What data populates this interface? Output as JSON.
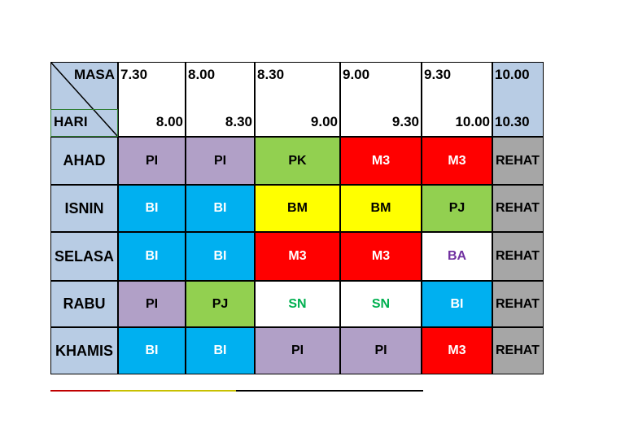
{
  "header": {
    "corner_top": "MASA",
    "corner_bottom": "HARI",
    "slots": [
      {
        "start": "7.30",
        "end": "8.00"
      },
      {
        "start": "8.00",
        "end": "8.30"
      },
      {
        "start": "8.30",
        "end": "9.00"
      },
      {
        "start": "9.00",
        "end": "9.30"
      },
      {
        "start": "9.30",
        "end": "10.00"
      },
      {
        "start": "10.00",
        "end": "10.30"
      }
    ]
  },
  "rows": [
    {
      "day": "AHAD",
      "cells": [
        {
          "text": "PI",
          "bg": "#b1a0c7",
          "fg": "#000000"
        },
        {
          "text": "PI",
          "bg": "#b1a0c7",
          "fg": "#000000"
        },
        {
          "text": "PK",
          "bg": "#92d050",
          "fg": "#000000"
        },
        {
          "text": "M3",
          "bg": "#ff0000",
          "fg": "#ffffff"
        },
        {
          "text": "M3",
          "bg": "#ff0000",
          "fg": "#ffffff"
        },
        {
          "text": "REHAT",
          "bg": "#a6a6a6",
          "fg": "#000000"
        }
      ]
    },
    {
      "day": "ISNIN",
      "cells": [
        {
          "text": "BI",
          "bg": "#00b0f0",
          "fg": "#ffffff"
        },
        {
          "text": "BI",
          "bg": "#00b0f0",
          "fg": "#ffffff"
        },
        {
          "text": "BM",
          "bg": "#ffff00",
          "fg": "#000000"
        },
        {
          "text": "BM",
          "bg": "#ffff00",
          "fg": "#000000"
        },
        {
          "text": "PJ",
          "bg": "#92d050",
          "fg": "#000000"
        },
        {
          "text": "REHAT",
          "bg": "#a6a6a6",
          "fg": "#000000"
        }
      ]
    },
    {
      "day": "SELASA",
      "cells": [
        {
          "text": "BI",
          "bg": "#00b0f0",
          "fg": "#ffffff"
        },
        {
          "text": "BI",
          "bg": "#00b0f0",
          "fg": "#ffffff"
        },
        {
          "text": "M3",
          "bg": "#ff0000",
          "fg": "#ffffff"
        },
        {
          "text": "M3",
          "bg": "#ff0000",
          "fg": "#ffffff"
        },
        {
          "text": "BA",
          "bg": "#ffffff",
          "fg": "#7030a0"
        },
        {
          "text": "REHAT",
          "bg": "#a6a6a6",
          "fg": "#000000"
        }
      ]
    },
    {
      "day": "RABU",
      "cells": [
        {
          "text": "PI",
          "bg": "#b1a0c7",
          "fg": "#000000"
        },
        {
          "text": "PJ",
          "bg": "#92d050",
          "fg": "#000000"
        },
        {
          "text": "SN",
          "bg": "#ffffff",
          "fg": "#00b050"
        },
        {
          "text": "SN",
          "bg": "#ffffff",
          "fg": "#00b050"
        },
        {
          "text": "BI",
          "bg": "#00b0f0",
          "fg": "#ffffff"
        },
        {
          "text": "REHAT",
          "bg": "#a6a6a6",
          "fg": "#000000"
        }
      ]
    },
    {
      "day": "KHAMIS",
      "cells": [
        {
          "text": "BI",
          "bg": "#00b0f0",
          "fg": "#ffffff"
        },
        {
          "text": "BI",
          "bg": "#00b0f0",
          "fg": "#ffffff"
        },
        {
          "text": "PI",
          "bg": "#b1a0c7",
          "fg": "#000000"
        },
        {
          "text": "PI",
          "bg": "#b1a0c7",
          "fg": "#000000"
        },
        {
          "text": "M3",
          "bg": "#ff0000",
          "fg": "#ffffff"
        },
        {
          "text": "REHAT",
          "bg": "#a6a6a6",
          "fg": "#000000"
        }
      ]
    }
  ]
}
